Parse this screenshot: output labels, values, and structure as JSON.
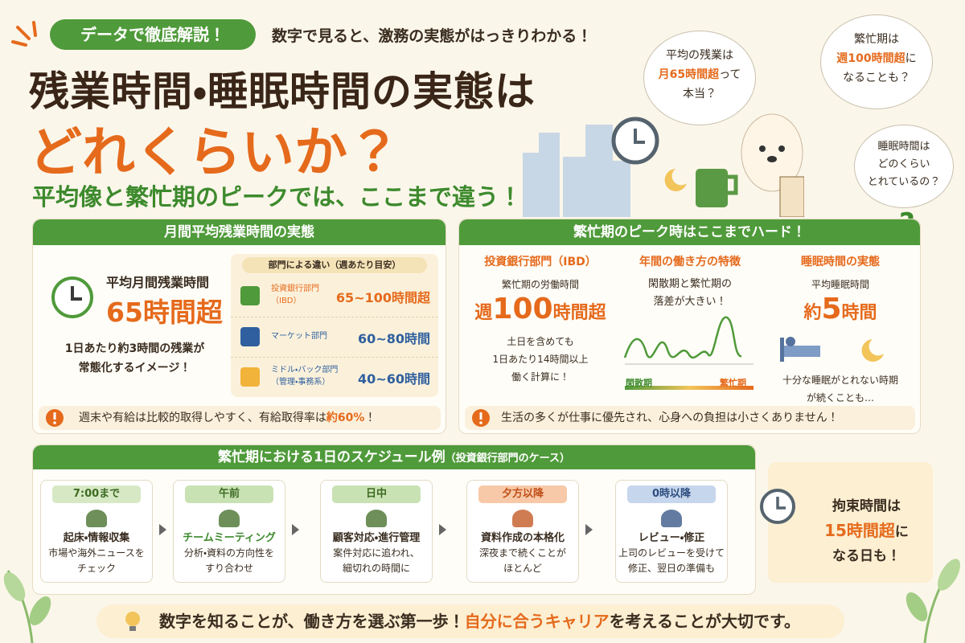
{
  "header": {
    "badge": "データで徹底解説！",
    "tagline": "数字で見ると、激務の実態がはっきりわかる！",
    "title_line1": "残業時間・睡眠時間の実態は",
    "title_line2": "どれくらいか？",
    "subtitle": "平均像と繁忙期のピークでは、ここまで違う！"
  },
  "bubbles": [
    {
      "line1": "平均の残業は",
      "line2_em": "月65時間超",
      "line2_rest": "って",
      "line3": "本当？"
    },
    {
      "line1": "繁忙期は",
      "line2_em": "週100時間超",
      "line2_rest": "に",
      "line3": "なることも？"
    },
    {
      "line1": "睡眠時間は",
      "line2": "どのくらい",
      "line3": "とれているの？"
    }
  ],
  "question_mark": "?",
  "left_panel": {
    "title": "月間平均残業時間の実態",
    "label": "平均月間残業時間",
    "value": "65時間超",
    "notes": [
      "1日あたり約3時間の残業が",
      "常態化するイメージ！"
    ],
    "dept_header": "部門による違い（週あたり目安）",
    "depts": [
      {
        "name": "投資銀行部門",
        "sub": "（IBD）",
        "range": "65~100時間超"
      },
      {
        "name": "マーケット部門",
        "range": "60~80時間"
      },
      {
        "name": "ミドル・バック部門",
        "sub": "（管理・事務系）",
        "range": "40~60時間"
      }
    ],
    "alert": "週末や有給は比較的取得しやすく、有給取得率は",
    "alert_em": "約60%",
    "alert_end": "！"
  },
  "right_panel": {
    "title": "繁忙期のピーク時はここまでハード！",
    "ibd": {
      "heading": "投資銀行部門（IBD）",
      "label": "繁忙期の労働時間",
      "value_pre": "週",
      "value_num": "100",
      "value_post": "時間超",
      "notes": [
        "土日を含めても",
        "1日あたり14時間以上",
        "働く計算に！"
      ]
    },
    "year": {
      "heading": "年間の働き方の特徴",
      "notes": [
        "閑散期と繁忙期の",
        "落差が大きい！"
      ],
      "low_label": "閑散期",
      "high_label": "繁忙期"
    },
    "sleep": {
      "heading": "睡眠時間の実態",
      "label": "平均睡眠時間",
      "value_pre": "約",
      "value_num": "5",
      "value_post": "時間",
      "notes": [
        "十分な睡眠がとれない時期",
        "が続くことも…"
      ]
    },
    "alert": "生活の多くが仕事に優先され、心身への負担は小さくありません！"
  },
  "schedule": {
    "title": "繁忙期における1日のスケジュール例",
    "title_sub": "（投資銀行部門のケース）",
    "steps": [
      {
        "time": "7:00まで",
        "head": "起床・情報収集",
        "lines": [
          "市場や海外ニュースを",
          "チェック"
        ]
      },
      {
        "time": "午前",
        "head": "チームミーティング",
        "lines": [
          "分析・資料の方向性を",
          "すり合わせ"
        ]
      },
      {
        "time": "日中",
        "head": "顧客対応・進行管理",
        "lines": [
          "案件対応に追われ、",
          "細切れの時間に"
        ]
      },
      {
        "time": "夕方以降",
        "head": "資料作成の本格化",
        "lines": [
          "深夜まで続くことが",
          "ほとんど"
        ]
      },
      {
        "time": "0時以降",
        "head": "レビュー・修正",
        "lines": [
          "上司のレビューを受けて",
          "修正、翌日の準備も"
        ]
      }
    ],
    "summary": {
      "line1": "拘束時間は",
      "line2_em": "15時間超",
      "line2_rest": "に",
      "line3": "なる日も！"
    }
  },
  "footer": {
    "pre": "数字を知ることが、働き方を選ぶ第一歩！",
    "em": "自分に合うキャリア",
    "post": "を考えることが大切です。"
  }
}
